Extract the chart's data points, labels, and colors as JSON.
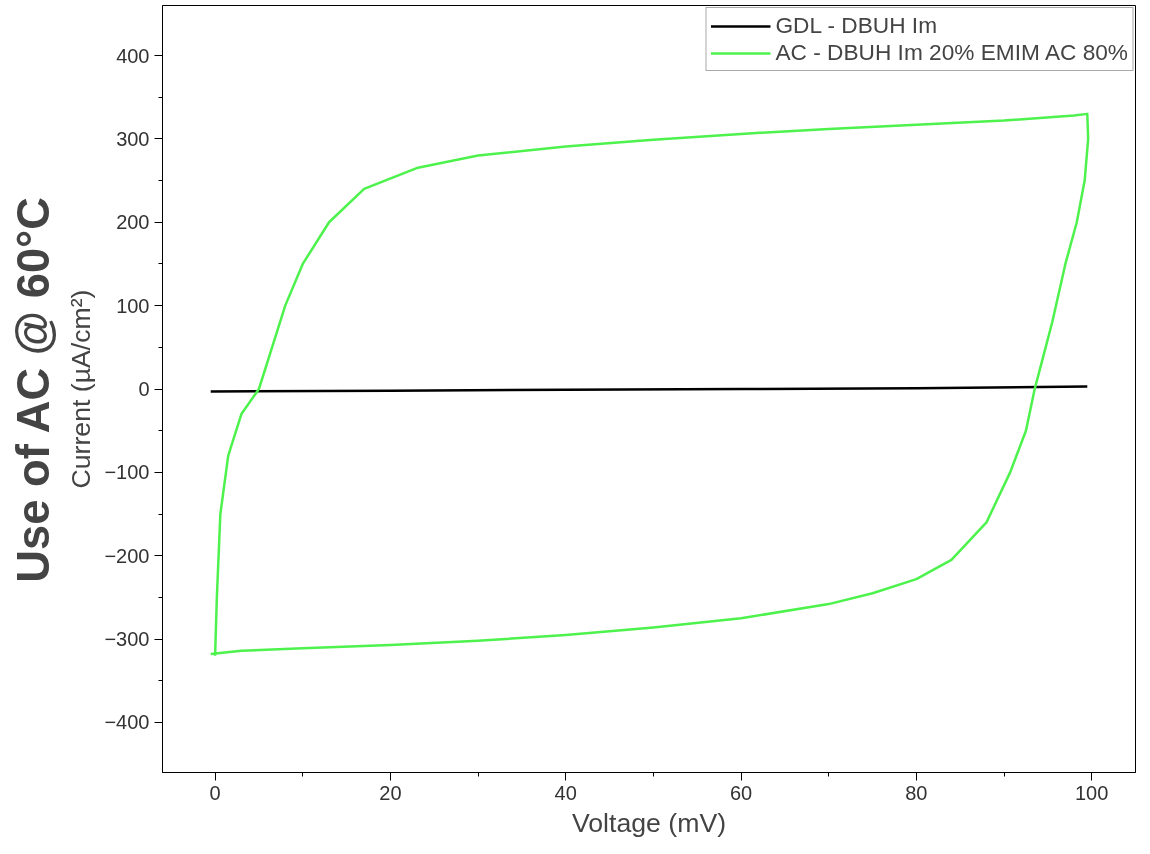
{
  "chart_data": {
    "type": "line",
    "title": "Use of AC @ 60°C",
    "xlabel": "Voltage (mV)",
    "ylabel": "Current (µA/cm²)",
    "xlim": [
      -6,
      105
    ],
    "ylim": [
      -460,
      460
    ],
    "xticks": [
      0,
      20,
      40,
      60,
      80,
      100
    ],
    "yticks": [
      -400,
      -300,
      -200,
      -100,
      0,
      100,
      200,
      300,
      400
    ],
    "grid": false,
    "legend": "top right",
    "line_style": "solid",
    "marker": "none",
    "series": [
      {
        "name": "GDL - DBUH Im",
        "color": "#000000",
        "x": [
          -0.5,
          20,
          40,
          60,
          80,
          99.5
        ],
        "values": [
          -3,
          -2,
          -1,
          0,
          1,
          3
        ]
      },
      {
        "name": "AC - DBUH Im 20% EMIM AC 80%",
        "color": "#4df24d",
        "x": [
          0,
          0.2,
          0.6,
          1.5,
          3,
          5,
          6.5,
          8,
          10,
          13,
          17,
          23,
          30,
          40,
          50,
          60,
          70,
          80,
          90,
          98,
          99.5,
          99.6,
          99.2,
          98.3,
          97,
          95.5,
          94,
          93.5,
          92.5,
          90.7,
          88,
          84,
          80,
          75,
          70,
          60,
          50,
          40,
          30,
          20,
          10,
          3,
          -0.5
        ],
        "values": [
          -320,
          -250,
          -150,
          -80,
          -30,
          0,
          50,
          100,
          150,
          200,
          240,
          265,
          280,
          291,
          299,
          306,
          312,
          317,
          322,
          328,
          330,
          300,
          250,
          200,
          150,
          80,
          20,
          0,
          -50,
          -100,
          -160,
          -205,
          -228,
          -245,
          -258,
          -275,
          -286,
          -295,
          -302,
          -307,
          -311,
          -314,
          -318
        ]
      }
    ]
  }
}
